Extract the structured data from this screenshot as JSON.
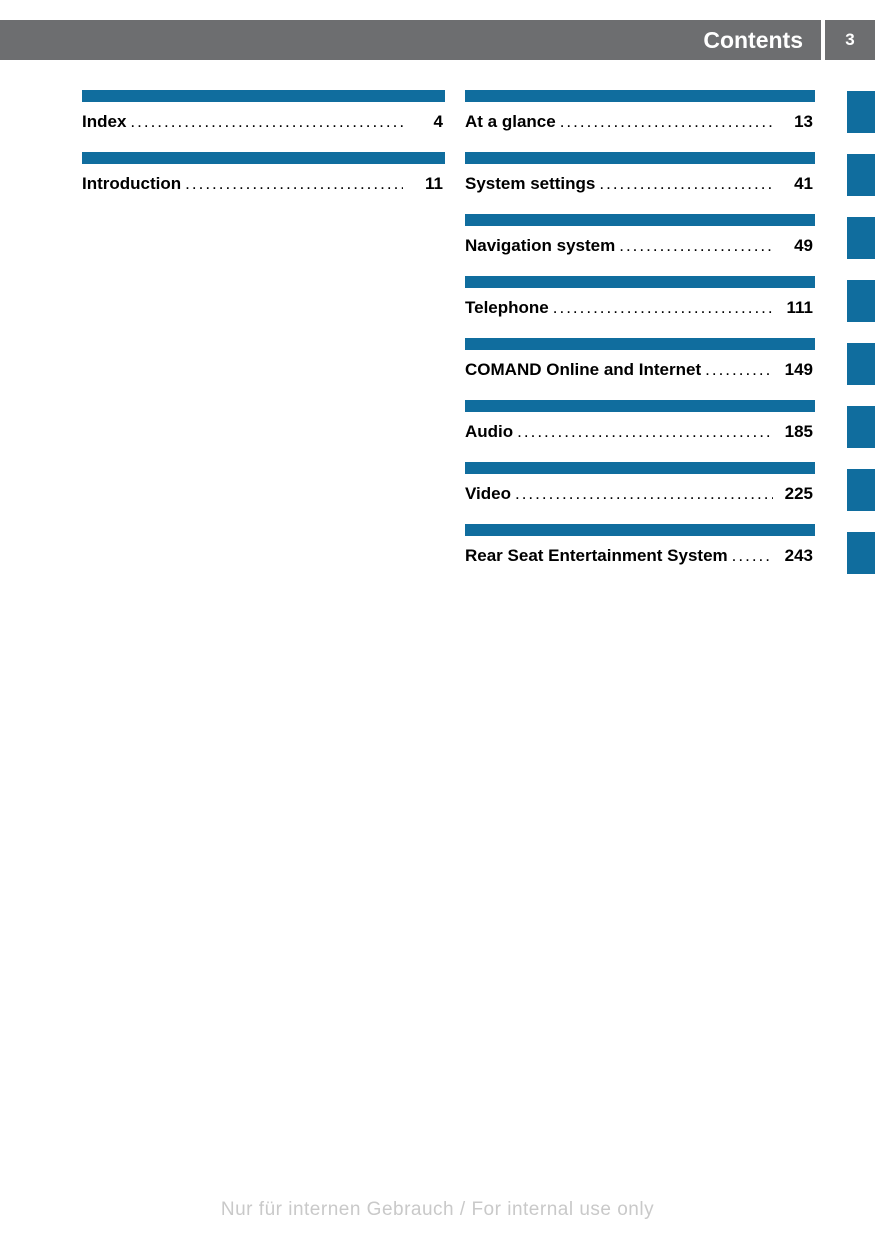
{
  "header": {
    "title": "Contents",
    "page_number": "3"
  },
  "colors": {
    "header_bg": "#6d6e70",
    "blue_bar": "#106d9e",
    "text": "#000000",
    "header_text": "#ffffff",
    "footer_text": "#c9c9c9"
  },
  "left_column": [
    {
      "title": "Index",
      "page": "4"
    },
    {
      "title": "Introduction",
      "page": "11"
    }
  ],
  "right_column": [
    {
      "title": "At a glance",
      "page": "13"
    },
    {
      "title": "System settings",
      "page": "41"
    },
    {
      "title": "Navigation system",
      "page": "49"
    },
    {
      "title": "Telephone",
      "page": "111"
    },
    {
      "title": "COMAND Online and Internet",
      "page": "149"
    },
    {
      "title": "Audio",
      "page": "185"
    },
    {
      "title": "Video",
      "page": "225"
    },
    {
      "title": "Rear Seat Entertainment System",
      "page": "243"
    }
  ],
  "side_tab_count": 8,
  "footer": {
    "text": "Nur für internen Gebrauch / For internal use only"
  }
}
